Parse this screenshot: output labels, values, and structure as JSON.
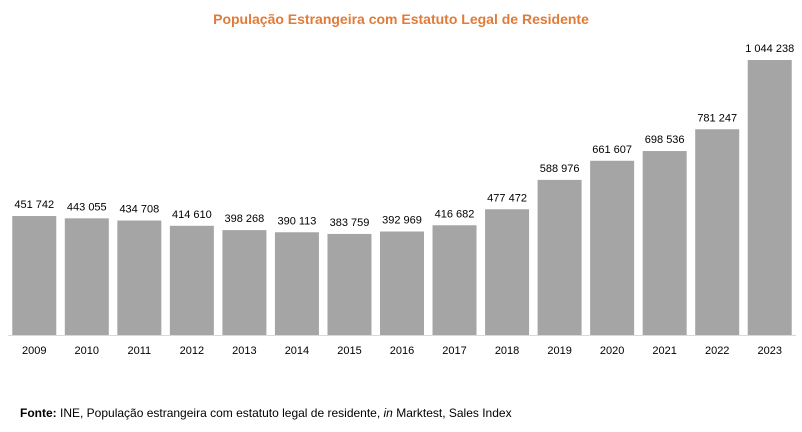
{
  "chart_data": {
    "type": "bar",
    "title": "População Estrangeira com Estatuto Legal de Residente",
    "categories": [
      "2009",
      "2010",
      "2011",
      "2012",
      "2013",
      "2014",
      "2015",
      "2016",
      "2017",
      "2018",
      "2019",
      "2020",
      "2021",
      "2022",
      "2023"
    ],
    "values": [
      451742,
      443055,
      434708,
      414610,
      398268,
      390113,
      383759,
      392969,
      416682,
      477472,
      588976,
      661607,
      698536,
      781247,
      1044238
    ],
    "value_labels": [
      "451 742",
      "443 055",
      "434 708",
      "414 610",
      "398 268",
      "390 113",
      "383 759",
      "392 969",
      "416 682",
      "477 472",
      "588 976",
      "661 607",
      "698 536",
      "781 247",
      "1 044 238"
    ],
    "xlabel": "",
    "ylabel": "",
    "ylim": [
      0,
      1044238
    ],
    "grid": false,
    "bar_color": "#a5a5a5",
    "title_color": "#e07b39"
  },
  "source": {
    "label": "Fonte:",
    "text_part1": " INE, População estrangeira com estatuto legal de residente, ",
    "italic": "in",
    "text_part2": " Marktest, Sales Index"
  }
}
